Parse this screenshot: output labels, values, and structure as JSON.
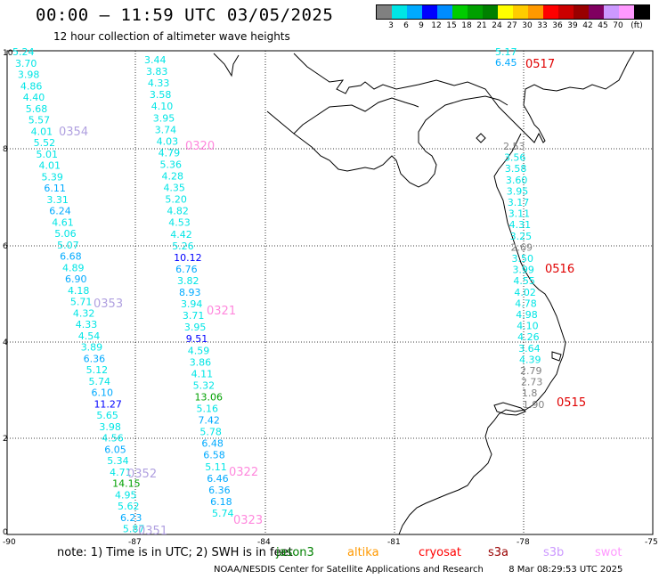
{
  "title": "00:00 – 11:59 UTC 03/05/2025",
  "subtitle": "12 hour collection of altimeter wave heights",
  "legend": {
    "unit": "(ft)",
    "colors": [
      "#808080",
      "#00e5e5",
      "#00aaff",
      "#0000ff",
      "#008cff",
      "#00cc00",
      "#00a000",
      "#008000",
      "#ffff00",
      "#ffcc00",
      "#ff9900",
      "#ff0000",
      "#cc0000",
      "#990000",
      "#800060",
      "#cc99ff",
      "#ff99ff",
      "#000000"
    ],
    "ticks": [
      "3",
      "6",
      "9",
      "12",
      "15",
      "18",
      "21",
      "24",
      "27",
      "30",
      "33",
      "36",
      "39",
      "42",
      "45",
      "70"
    ]
  },
  "axes": {
    "x_ticks": [
      "-90",
      "-87",
      "-84",
      "-81",
      "-78",
      "-75"
    ],
    "y_ticks": [
      "0",
      "2",
      "4",
      "6",
      "8",
      "10"
    ]
  },
  "tracks": [
    {
      "id": "0354",
      "labels": [
        {
          "t": "0354",
          "c": "#b0a0e0"
        },
        {
          "t": "0353",
          "c": "#b0a0e0"
        },
        {
          "t": "0352",
          "c": "#b0a0e0"
        },
        {
          "t": "0351",
          "c": "#b0a0e0"
        }
      ]
    }
  ],
  "passes": {
    "a": {
      "values": [
        "5.24",
        "3.70",
        "3.98",
        "4.86",
        "4.40",
        "5.68",
        "5.57",
        "4.01",
        "5.52",
        "5.01",
        "4.01",
        "5.39",
        "6.11",
        "3.31",
        "6.24",
        "4.61",
        "5.06",
        "5.07",
        "6.68",
        "4.89",
        "6.90",
        "4.18",
        "5.71",
        "4.32",
        "4.33",
        "4.54",
        "3.89",
        "6.36",
        "5.12",
        "5.74",
        "6.10",
        "11.27",
        "5.65",
        "3.98",
        "4.56",
        "6.05",
        "5.34",
        "4.71",
        "14.15",
        "4.95",
        "5.62",
        "6.23",
        "5.87"
      ],
      "labels": [
        "0354",
        "0353",
        "0352",
        "0351"
      ]
    },
    "b": {
      "values": [
        "3.44",
        "3.83",
        "4.33",
        "3.58",
        "4.10",
        "3.95",
        "3.74",
        "4.03",
        "4.79",
        "5.36",
        "4.28",
        "4.35",
        "5.20",
        "4.82",
        "4.53",
        "4.42",
        "5.26",
        "10.12",
        "6.76",
        "3.82",
        "8.93",
        "3.94",
        "3.71",
        "3.95",
        "9.51",
        "4.59",
        "3.86",
        "4.11",
        "5.32",
        "13.06",
        "5.16",
        "7.42",
        "5.78",
        "6.48",
        "6.58",
        "5.11",
        "6.46",
        "6.36",
        "6.18",
        "5.74"
      ],
      "labels": [
        "0320",
        "0321",
        "0322",
        "0323"
      ]
    },
    "c": {
      "values": [
        "5.17",
        "6.45",
        "2.53",
        "3.56",
        "3.58",
        "3.60",
        "3.95",
        "3.17",
        "3.11",
        "4.31",
        "3.25",
        "2.69",
        "3.50",
        "3.99",
        "4.55",
        "4.02",
        "4.78",
        "4.98",
        "4.10",
        "4.26",
        "3.64",
        "4.39",
        "2.79",
        "2.73",
        "1.8",
        "1.90"
      ],
      "labels": [
        "0517",
        "0516",
        "0515"
      ]
    }
  },
  "note": "note:  1) Time is in UTC; 2) SWH is in feet",
  "satellites": [
    {
      "name": "jason3",
      "color": "#008000"
    },
    {
      "name": "altika",
      "color": "#ff9900"
    },
    {
      "name": "cryosat",
      "color": "#ff0000"
    },
    {
      "name": "s3a",
      "color": "#990000"
    },
    {
      "name": "s3b",
      "color": "#cc99ff"
    },
    {
      "name": "swot",
      "color": "#ff99ff"
    }
  ],
  "credit": "NOAA/NESDIS Center for Satellite Applications and Research",
  "timestamp": "8 Mar 08:29:53 UTC 2025"
}
